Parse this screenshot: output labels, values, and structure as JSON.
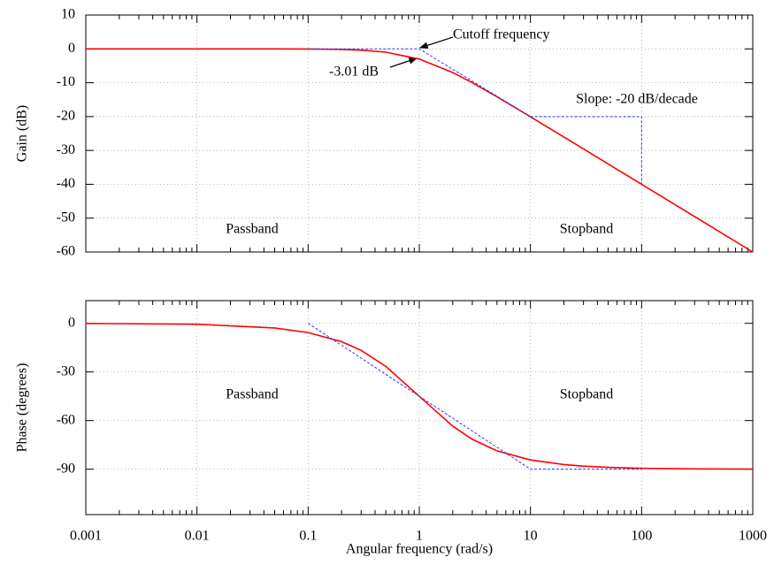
{
  "chart_data": [
    {
      "type": "line",
      "ylabel": "Gain (dB)",
      "xlim": [
        0.001,
        1000
      ],
      "xscale": "log",
      "ylim": [
        -60,
        10
      ],
      "yticks": [
        10,
        0,
        -10,
        -20,
        -30,
        -40,
        -50,
        -60
      ],
      "grid": true,
      "series": [
        {
          "color": "#ff0000",
          "x": [
            0.001,
            0.01,
            0.05,
            0.1,
            0.2,
            0.3,
            0.5,
            1,
            2,
            3,
            5,
            10,
            20,
            30,
            50,
            100,
            300,
            1000
          ],
          "values": [
            0,
            0,
            -0.01,
            -0.04,
            -0.17,
            -0.37,
            -0.97,
            -3.01,
            -6.99,
            -10,
            -14.15,
            -20.04,
            -26.03,
            -29.55,
            -33.98,
            -40,
            -49.54,
            -60
          ]
        },
        {
          "color": "#3333ff",
          "dashed": true,
          "x": [
            0.1,
            1,
            10
          ],
          "values": [
            0,
            0,
            -20
          ]
        },
        {
          "color": "#3333ff",
          "dashed": true,
          "x": [
            10,
            100,
            100
          ],
          "values": [
            -20,
            -20,
            -40
          ]
        }
      ],
      "annotations": [
        "Cutoff frequency",
        "-3.01 dB",
        "Slope: -20 dB/decade",
        "Passband",
        "Stopband"
      ]
    },
    {
      "type": "line",
      "ylabel": "Phase (degrees)",
      "xlabel": "Angular frequency (rad/s)",
      "xlim": [
        0.001,
        1000
      ],
      "xscale": "log",
      "xticks": [
        0.001,
        0.01,
        0.1,
        1,
        10,
        100,
        1000
      ],
      "ylim": [
        -118,
        14
      ],
      "yticks": [
        0,
        -30,
        -60,
        -90
      ],
      "grid": true,
      "series": [
        {
          "color": "#ff0000",
          "x": [
            0.001,
            0.01,
            0.05,
            0.1,
            0.2,
            0.3,
            0.5,
            1,
            2,
            3,
            5,
            10,
            20,
            30,
            50,
            100,
            300,
            1000
          ],
          "values": [
            -0.06,
            -0.57,
            -2.86,
            -5.71,
            -11.31,
            -16.7,
            -26.57,
            -45,
            -63.43,
            -71.57,
            -78.69,
            -84.29,
            -87.14,
            -88.09,
            -88.85,
            -89.43,
            -89.81,
            -89.94
          ]
        },
        {
          "color": "#3333ff",
          "dashed": true,
          "x": [
            0.1,
            10,
            100
          ],
          "values": [
            0,
            -90,
            -90
          ]
        }
      ],
      "annotations": [
        "Passband",
        "Stopband"
      ]
    }
  ]
}
